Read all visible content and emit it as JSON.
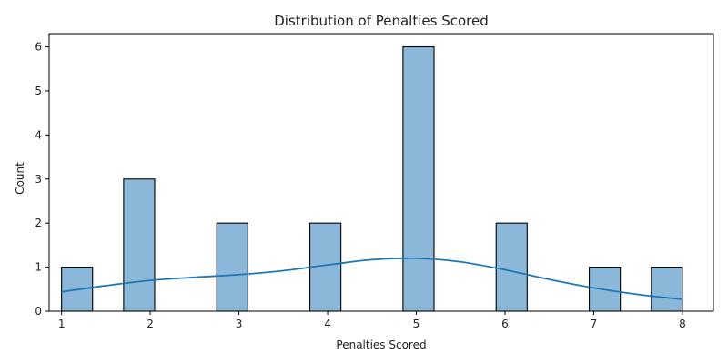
{
  "chart_data": {
    "type": "bar",
    "title": "Distribution of Penalties Scored",
    "xlabel": "Penalties Scored",
    "ylabel": "Count",
    "xlim": [
      0.86,
      8.35
    ],
    "ylim": [
      0,
      6.3
    ],
    "xticks": [
      1,
      2,
      3,
      4,
      5,
      6,
      7,
      8
    ],
    "yticks": [
      0,
      1,
      2,
      3,
      4,
      5,
      6
    ],
    "bin_width": 0.35,
    "bars": [
      {
        "x0": 1.0,
        "x1": 1.35,
        "count": 1
      },
      {
        "x0": 1.7,
        "x1": 2.05,
        "count": 3
      },
      {
        "x0": 2.75,
        "x1": 3.1,
        "count": 2
      },
      {
        "x0": 3.8,
        "x1": 4.15,
        "count": 2
      },
      {
        "x0": 4.85,
        "x1": 5.2,
        "count": 6
      },
      {
        "x0": 5.9,
        "x1": 6.25,
        "count": 2
      },
      {
        "x0": 6.95,
        "x1": 7.3,
        "count": 1
      },
      {
        "x0": 7.65,
        "x1": 8.0,
        "count": 1
      }
    ],
    "kde": {
      "x": [
        1.0,
        1.5,
        2.0,
        2.5,
        3.0,
        3.5,
        4.0,
        4.5,
        5.0,
        5.5,
        6.0,
        6.5,
        7.0,
        7.5,
        8.0
      ],
      "y": [
        0.44,
        0.58,
        0.7,
        0.77,
        0.83,
        0.92,
        1.05,
        1.17,
        1.2,
        1.12,
        0.94,
        0.72,
        0.53,
        0.38,
        0.27
      ]
    },
    "colors": {
      "bar_fill": "#8bb8d9",
      "bar_edge": "#000000",
      "kde_line": "#1f77b4"
    },
    "grid": false,
    "legend": "none"
  }
}
